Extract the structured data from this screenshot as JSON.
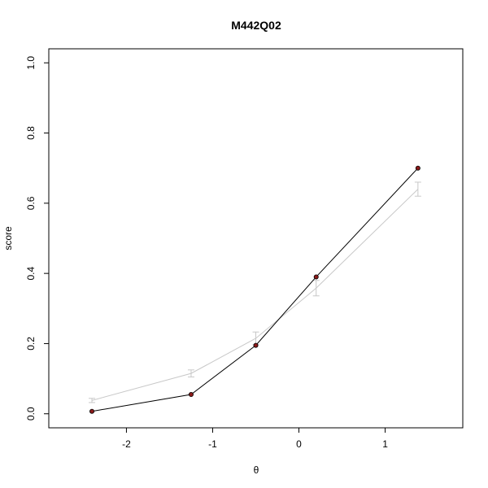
{
  "chart_data": {
    "type": "line",
    "title": "M442Q02",
    "xlabel": "θ",
    "ylabel": "score",
    "xlim": [
      -2.9,
      1.9
    ],
    "ylim": [
      -0.04,
      1.04
    ],
    "xticks": [
      -2,
      -1,
      0,
      1
    ],
    "xtick_labels": [
      "-2",
      "-1",
      "0",
      "1"
    ],
    "yticks": [
      0.0,
      0.2,
      0.4,
      0.6,
      0.8,
      1.0
    ],
    "ytick_labels": [
      "0.0",
      "0.2",
      "0.4",
      "0.6",
      "0.8",
      "1.0"
    ],
    "grid": false,
    "series": [
      {
        "color": "#c8c8c8",
        "points": [
          {
            "x": -2.4,
            "y": 0.038,
            "err": 0.006
          },
          {
            "x": -1.25,
            "y": 0.115,
            "err": 0.01
          },
          {
            "x": -0.5,
            "y": 0.215,
            "err": 0.018
          },
          {
            "x": 0.2,
            "y": 0.358,
            "err": 0.022
          },
          {
            "x": 1.38,
            "y": 0.64,
            "err": 0.02
          }
        ]
      },
      {
        "color": "#000000",
        "marker_fill": "#8b1a1a",
        "points": [
          {
            "x": -2.4,
            "y": 0.007
          },
          {
            "x": -1.25,
            "y": 0.055
          },
          {
            "x": -0.5,
            "y": 0.195
          },
          {
            "x": 0.2,
            "y": 0.39
          },
          {
            "x": 1.38,
            "y": 0.7
          }
        ]
      }
    ]
  }
}
